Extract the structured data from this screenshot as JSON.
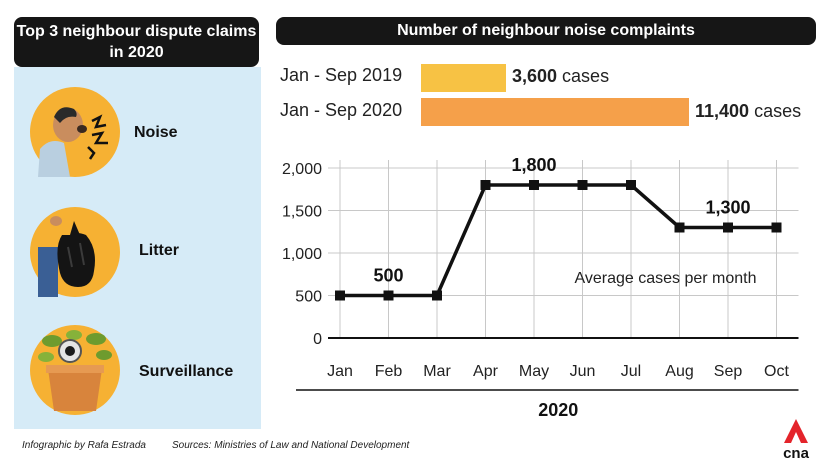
{
  "left_title": "Top 3 neighbour dispute claims in 2020",
  "right_title": "Number of neighbour noise complaints",
  "claims": [
    {
      "label": "Noise",
      "icon": "noise-person-icon"
    },
    {
      "label": "Litter",
      "icon": "litter-bag-icon"
    },
    {
      "label": "Surveillance",
      "icon": "surveillance-plant-camera-icon"
    }
  ],
  "comparison": [
    {
      "period": "Jan - Sep 2019",
      "value": 3600,
      "value_text": "3,600",
      "unit": " cases",
      "color": "#f7c244"
    },
    {
      "period": "Jan - Sep 2020",
      "value": 11400,
      "value_text": "11,400",
      "unit": " cases",
      "color": "#f5a04a"
    }
  ],
  "chart_data": {
    "type": "line",
    "categories": [
      "Jan",
      "Feb",
      "Mar",
      "Apr",
      "May",
      "Jun",
      "Jul",
      "Aug",
      "Sep",
      "Oct"
    ],
    "values": [
      500,
      500,
      500,
      1800,
      1800,
      1800,
      1800,
      1300,
      1300,
      1300
    ],
    "xlabel": "2020",
    "ylabel": "",
    "ylim": [
      0,
      2000
    ],
    "yticks": [
      0,
      500,
      1000,
      1500,
      2000
    ],
    "ytick_labels": [
      "0",
      "500",
      "1,000",
      "1,500",
      "2,000"
    ],
    "annotations": [
      {
        "text": "500",
        "at": "Feb"
      },
      {
        "text": "1,800",
        "at": "May"
      },
      {
        "text": "1,300",
        "at": "Sep"
      }
    ],
    "note": "Average cases per month",
    "grid": true,
    "line_color": "#111111"
  },
  "footer": {
    "credit": "Infographic by Rafa Estrada",
    "sources": "Sources: Ministries of Law and National Development",
    "logo_text": "cna",
    "logo_color": "#e4242b"
  }
}
